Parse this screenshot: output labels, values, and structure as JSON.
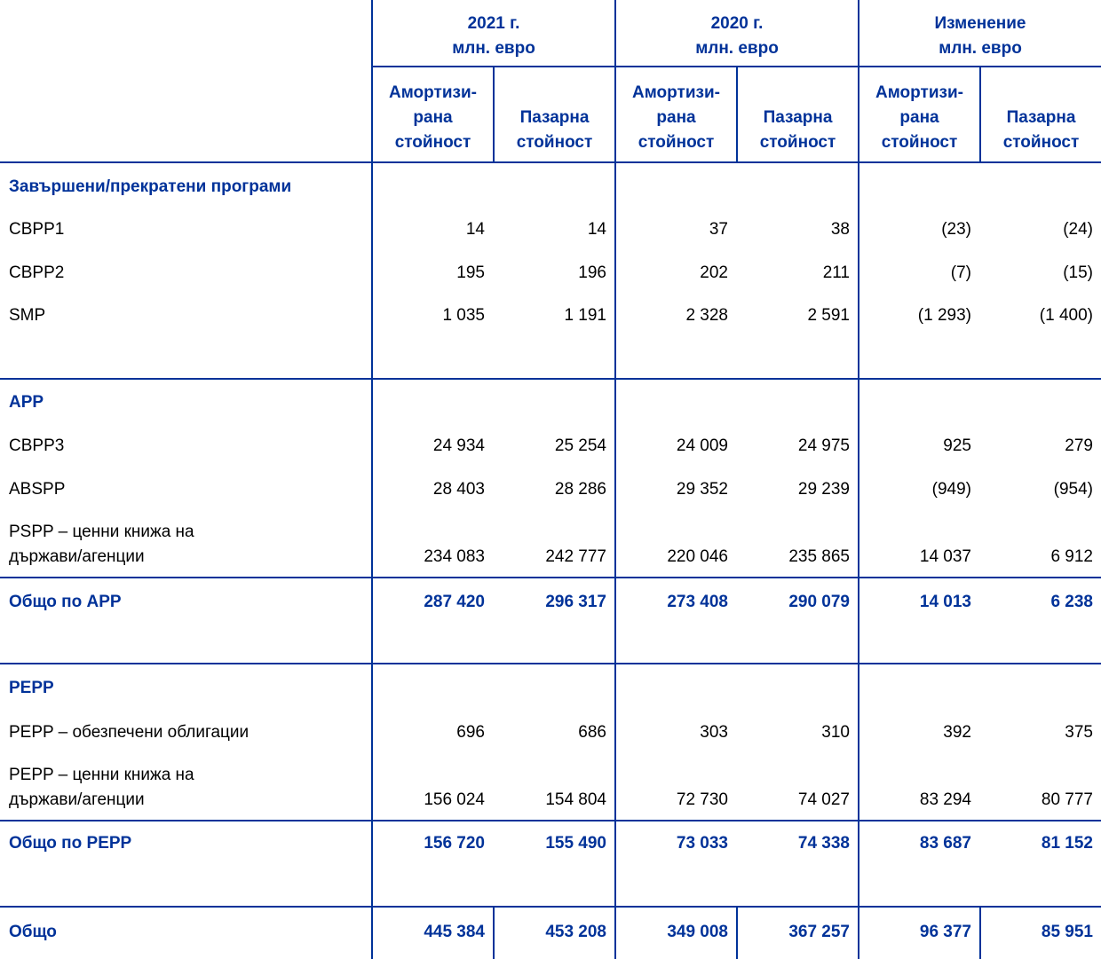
{
  "header": {
    "groups": [
      {
        "line1": "2021 г.",
        "line2": "млн. евро"
      },
      {
        "line1": "2020 г.",
        "line2": "млн. евро"
      },
      {
        "line1": "Изменение",
        "line2": "млн. евро"
      }
    ],
    "amort": [
      "Амортизи-",
      "рана",
      "стойност"
    ],
    "market": [
      "Пазарна",
      "стойност"
    ]
  },
  "rows": [
    {
      "label": "Завършени/прекратени програми",
      "section": true
    },
    {
      "label": "CBPP1",
      "values": [
        "14",
        "14",
        "37",
        "38",
        "(23)",
        "(24)"
      ]
    },
    {
      "label": "CBPP2",
      "values": [
        "195",
        "196",
        "202",
        "211",
        "(7)",
        "(15)"
      ]
    },
    {
      "label": "SMP",
      "values": [
        "1 035",
        "1 191",
        "2 328",
        "2 591",
        "(1 293)",
        "(1 400)"
      ]
    },
    {
      "label": "APP",
      "section": true
    },
    {
      "label": "CBPP3",
      "values": [
        "24 934",
        "25 254",
        "24 009",
        "24 975",
        "925",
        "279"
      ]
    },
    {
      "label": "ABSPP",
      "values": [
        "28 403",
        "28 286",
        "29 352",
        "29 239",
        "(949)",
        "(954)"
      ]
    },
    {
      "label": [
        "PSPP – ценни книжа на",
        "държави/агенции"
      ],
      "values": [
        "234 083",
        "242 777",
        "220 046",
        "235 865",
        "14 037",
        "6 912"
      ]
    },
    {
      "label": "Общо по APP",
      "total": true,
      "values": [
        "287 420",
        "296 317",
        "273 408",
        "290 079",
        "14 013",
        "6 238"
      ]
    },
    {
      "label": "PEPP",
      "section": true
    },
    {
      "label": "PEPP – обезпечени облигации",
      "values": [
        "696",
        "686",
        "303",
        "310",
        "392",
        "375"
      ]
    },
    {
      "label": [
        "PEPP – ценни книжа на",
        "държави/агенции"
      ],
      "values": [
        "156 024",
        "154 804",
        "72 730",
        "74 027",
        "83 294",
        "80 777"
      ]
    },
    {
      "label": "Общо по PEPP",
      "total": true,
      "values": [
        "156 720",
        "155 490",
        "73 033",
        "74 338",
        "83 687",
        "81 152"
      ]
    },
    {
      "label": "Общо",
      "total": true,
      "values": [
        "445 384",
        "453 208",
        "349 008",
        "367 257",
        "96 377",
        "85 951"
      ]
    }
  ]
}
